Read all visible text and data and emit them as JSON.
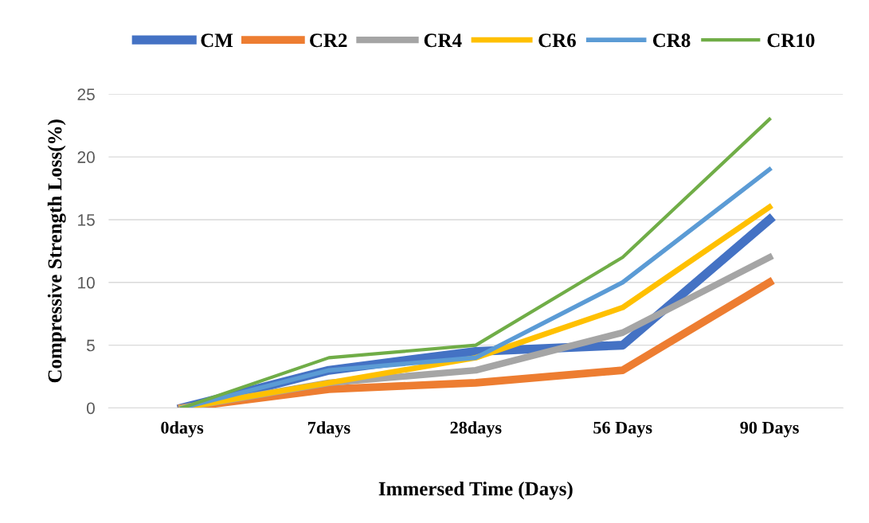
{
  "chart_data": {
    "type": "line",
    "xlabel": "Immersed Time (Days)",
    "ylabel": "Compressive Strength Loss(%)",
    "categories": [
      "0days",
      "7days",
      "28days",
      "56 Days",
      "90 Days"
    ],
    "series": [
      {
        "name": "CM",
        "color": "#4472c4",
        "values": [
          0,
          3,
          4.5,
          5,
          15
        ]
      },
      {
        "name": "CR2",
        "color": "#ed7d31",
        "values": [
          0,
          1.5,
          2,
          3,
          10
        ]
      },
      {
        "name": "CR4",
        "color": "#a5a5a5",
        "values": [
          0,
          2,
          3,
          6,
          12
        ]
      },
      {
        "name": "CR6",
        "color": "#ffc000",
        "values": [
          0,
          2,
          4,
          8,
          16
        ]
      },
      {
        "name": "CR8",
        "color": "#5b9bd5",
        "values": [
          0,
          3,
          4,
          10,
          19
        ]
      },
      {
        "name": "CR10",
        "color": "#70ad47",
        "values": [
          0,
          4,
          5,
          12,
          23
        ]
      }
    ],
    "ylim": [
      0,
      25
    ],
    "yticks": [
      0,
      5,
      10,
      15,
      20,
      25
    ],
    "grid": "y",
    "legend": "top",
    "marker": "none",
    "line_style": "solid"
  }
}
